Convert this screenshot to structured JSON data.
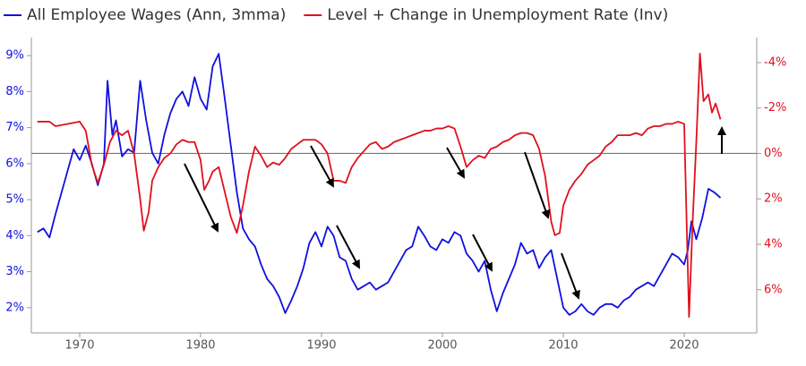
{
  "chart_data": {
    "type": "line",
    "xlim": [
      1966,
      2026
    ],
    "xticks": [
      1970,
      1980,
      1990,
      2000,
      2010,
      2020
    ],
    "ylim": [
      1.3,
      9.5
    ],
    "yticks": [
      {
        "value": 2,
        "label": "2%"
      },
      {
        "value": 3,
        "label": "3%"
      },
      {
        "value": 4,
        "label": "4%"
      },
      {
        "value": 5,
        "label": "5%"
      },
      {
        "value": 6,
        "label": "6%"
      },
      {
        "value": 7,
        "label": "7%"
      },
      {
        "value": 8,
        "label": "8%"
      },
      {
        "value": 9,
        "label": "9%"
      }
    ],
    "y2lim": [
      7.9,
      -5.1
    ],
    "y2ticks": [
      {
        "value": -4,
        "label": "-4%"
      },
      {
        "value": -2,
        "label": "-2%"
      },
      {
        "value": 0,
        "label": "0%"
      },
      {
        "value": 2,
        "label": "2%"
      },
      {
        "value": 4,
        "label": "4%"
      },
      {
        "value": 6,
        "label": "6%"
      }
    ],
    "reference_line": {
      "axis": "y2",
      "value": 0
    },
    "series": [
      {
        "name": "All Employee Wages (Ann, 3mma)",
        "color": "#1010e0",
        "axis": "y",
        "x": [
          1966.5,
          1967,
          1967.5,
          1968,
          1968.5,
          1969,
          1969.5,
          1970,
          1970.5,
          1971,
          1971.5,
          1972,
          1972.3,
          1972.7,
          1973,
          1973.5,
          1974,
          1974.5,
          1975,
          1975.5,
          1976,
          1976.5,
          1977,
          1977.5,
          1978,
          1978.5,
          1979,
          1979.5,
          1980,
          1980.5,
          1981,
          1981.5,
          1982,
          1982.5,
          1983,
          1983.5,
          1984,
          1984.5,
          1985,
          1985.5,
          1986,
          1986.5,
          1987,
          1987.5,
          1988,
          1988.5,
          1989,
          1989.5,
          1990,
          1990.5,
          1991,
          1991.5,
          1992,
          1992.5,
          1993,
          1993.5,
          1994,
          1994.5,
          1995,
          1995.5,
          1996,
          1996.5,
          1997,
          1997.5,
          1998,
          1998.5,
          1999,
          1999.5,
          2000,
          2000.5,
          2001,
          2001.5,
          2002,
          2002.5,
          2003,
          2003.5,
          2004,
          2004.5,
          2005,
          2005.5,
          2006,
          2006.5,
          2007,
          2007.5,
          2008,
          2008.5,
          2009,
          2009.5,
          2010,
          2010.5,
          2011,
          2011.5,
          2012,
          2012.5,
          2013,
          2013.5,
          2014,
          2014.5,
          2015,
          2015.5,
          2016,
          2016.5,
          2017,
          2017.5,
          2018,
          2018.5,
          2019,
          2019.5,
          2020,
          2020.3,
          2020.6,
          2021,
          2021.5,
          2022,
          2022.5,
          2023
        ],
        "values": [
          4.1,
          4.2,
          3.95,
          4.6,
          5.2,
          5.8,
          6.4,
          6.1,
          6.5,
          6.0,
          5.4,
          6.0,
          8.3,
          6.8,
          7.2,
          6.2,
          6.4,
          6.3,
          8.3,
          7.2,
          6.3,
          6.0,
          6.8,
          7.4,
          7.8,
          8.0,
          7.6,
          8.4,
          7.8,
          7.5,
          8.7,
          9.05,
          7.8,
          6.5,
          5.2,
          4.2,
          3.9,
          3.7,
          3.2,
          2.8,
          2.6,
          2.3,
          1.85,
          2.2,
          2.6,
          3.1,
          3.8,
          4.1,
          3.7,
          4.25,
          4.0,
          3.4,
          3.3,
          2.8,
          2.5,
          2.6,
          2.7,
          2.5,
          2.6,
          2.7,
          3.0,
          3.3,
          3.6,
          3.7,
          4.25,
          4.0,
          3.7,
          3.6,
          3.9,
          3.8,
          4.1,
          4.0,
          3.5,
          3.3,
          3.0,
          3.3,
          2.5,
          1.9,
          2.4,
          2.8,
          3.2,
          3.8,
          3.5,
          3.6,
          3.1,
          3.4,
          3.6,
          2.8,
          2.0,
          1.8,
          1.9,
          2.1,
          1.9,
          1.8,
          2.0,
          2.1,
          2.1,
          2.0,
          2.2,
          2.3,
          2.5,
          2.6,
          2.7,
          2.6,
          2.9,
          3.2,
          3.5,
          3.4,
          3.2,
          3.6,
          4.4,
          3.9,
          4.5,
          5.3,
          5.2,
          5.05
        ]
      },
      {
        "name": "Level + Change in Unemployment Rate (Inv)",
        "color": "#e0101e",
        "axis": "y2",
        "x": [
          1966.5,
          1967.5,
          1968,
          1969,
          1970,
          1970.5,
          1971,
          1971.5,
          1972,
          1972.5,
          1973,
          1973.5,
          1974,
          1974.5,
          1975,
          1975.3,
          1975.7,
          1976,
          1976.5,
          1977,
          1977.5,
          1978,
          1978.5,
          1979,
          1979.5,
          1980,
          1980.3,
          1980.7,
          1981,
          1981.5,
          1982,
          1982.5,
          1983,
          1983.5,
          1984,
          1984.5,
          1985,
          1985.5,
          1986,
          1986.5,
          1987,
          1987.5,
          1988,
          1988.5,
          1989,
          1989.5,
          1990,
          1990.5,
          1991,
          1991.5,
          1992,
          1992.5,
          1993,
          1993.5,
          1994,
          1994.5,
          1995,
          1995.5,
          1996,
          1996.5,
          1997,
          1997.5,
          1998,
          1998.5,
          1999,
          1999.5,
          2000,
          2000.5,
          2001,
          2001.5,
          2002,
          2002.5,
          2003,
          2003.5,
          2004,
          2004.5,
          2005,
          2005.5,
          2006,
          2006.5,
          2007,
          2007.5,
          2008,
          2008.5,
          2009,
          2009.3,
          2009.7,
          2010,
          2010.5,
          2011,
          2011.5,
          2012,
          2012.5,
          2013,
          2013.5,
          2014,
          2014.5,
          2015,
          2015.5,
          2016,
          2016.5,
          2017,
          2017.5,
          2018,
          2018.5,
          2019,
          2019.5,
          2020,
          2020.2,
          2020.4,
          2020.7,
          2021,
          2021.3,
          2021.6,
          2022,
          2022.3,
          2022.6,
          2023
        ],
        "values": [
          -1.4,
          -1.4,
          -1.2,
          -1.3,
          -1.4,
          -1.0,
          0.5,
          1.3,
          0.5,
          -0.5,
          -1.0,
          -0.8,
          -1.0,
          0,
          2.0,
          3.4,
          2.6,
          1.2,
          0.6,
          0.2,
          0,
          -0.4,
          -0.6,
          -0.5,
          -0.5,
          0.3,
          1.6,
          1.2,
          0.8,
          0.6,
          1.7,
          2.8,
          3.5,
          2.3,
          0.8,
          -0.3,
          0.1,
          0.6,
          0.4,
          0.5,
          0.2,
          -0.2,
          -0.4,
          -0.6,
          -0.6,
          -0.6,
          -0.4,
          0,
          1.2,
          1.2,
          1.3,
          0.6,
          0.2,
          -0.1,
          -0.4,
          -0.5,
          -0.2,
          -0.3,
          -0.5,
          -0.6,
          -0.7,
          -0.8,
          -0.9,
          -1.0,
          -1.0,
          -1.1,
          -1.1,
          -1.2,
          -1.1,
          -0.3,
          0.6,
          0.3,
          0.1,
          0.2,
          -0.2,
          -0.3,
          -0.5,
          -0.6,
          -0.8,
          -0.9,
          -0.9,
          -0.8,
          -0.2,
          1.0,
          3.0,
          3.6,
          3.5,
          2.3,
          1.6,
          1.2,
          0.9,
          0.5,
          0.3,
          0.1,
          -0.3,
          -0.5,
          -0.8,
          -0.8,
          -0.8,
          -0.9,
          -0.8,
          -1.1,
          -1.2,
          -1.2,
          -1.3,
          -1.3,
          -1.4,
          -1.3,
          3.0,
          7.2,
          3.0,
          -0.5,
          -4.4,
          -2.3,
          -2.6,
          -1.8,
          -2.2,
          -1.5
        ]
      }
    ]
  }
}
